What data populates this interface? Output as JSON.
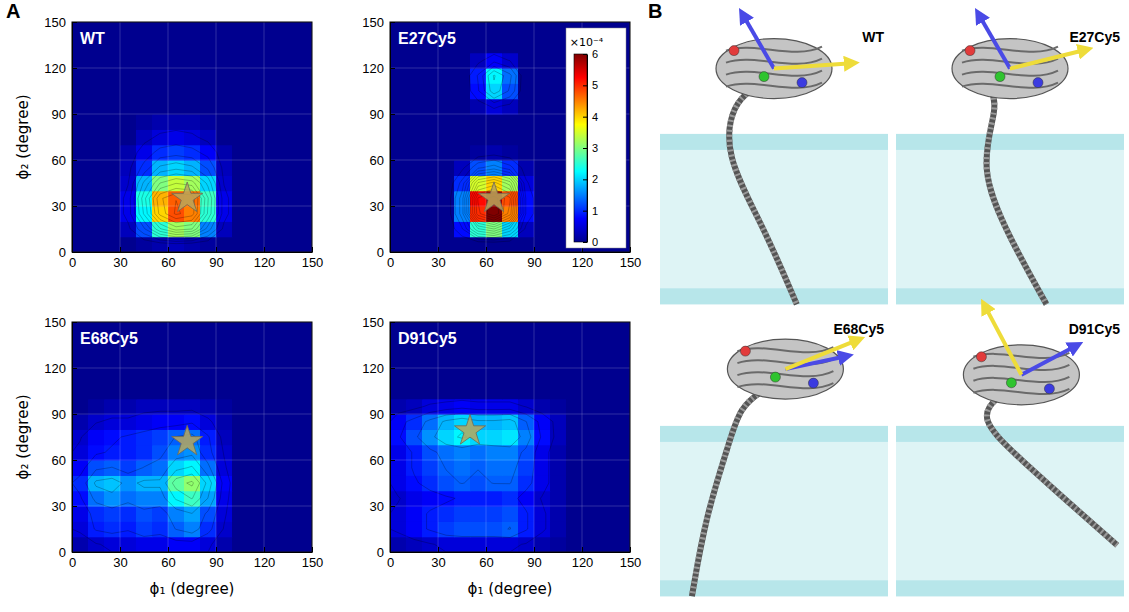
{
  "panel_labels": {
    "a": "A",
    "b": "B"
  },
  "colorbar": {
    "range": [
      0,
      6
    ],
    "ticks": [
      0,
      1,
      2,
      3,
      4,
      5,
      6
    ],
    "label": "×10⁻⁴"
  },
  "chart_data": [
    {
      "type": "heatmap",
      "title": "WT",
      "y_label": "ϕ₂ (degree)",
      "xlim": [
        0,
        150
      ],
      "ylim": [
        0,
        150
      ],
      "xticks": [
        0,
        30,
        60,
        90,
        120,
        150
      ],
      "yticks": [
        0,
        30,
        60,
        90,
        120,
        150
      ],
      "grid": true,
      "x": [
        5,
        15,
        25,
        35,
        45,
        55,
        65,
        75,
        85,
        95,
        105,
        115,
        125,
        135,
        145
      ],
      "y": [
        5,
        15,
        25,
        35,
        45,
        55,
        65,
        75,
        85,
        95,
        105,
        115,
        125,
        135,
        145
      ],
      "density": [
        [
          0,
          0,
          0,
          0,
          0.1,
          0.2,
          0.3,
          0.2,
          0.1,
          0,
          0,
          0,
          0,
          0,
          0
        ],
        [
          0,
          0,
          0,
          0.3,
          1.2,
          2.5,
          3.2,
          3.0,
          1.5,
          0.3,
          0,
          0,
          0,
          0,
          0
        ],
        [
          0,
          0,
          0,
          0.6,
          2.2,
          4.0,
          4.8,
          4.5,
          2.5,
          0.6,
          0,
          0,
          0,
          0,
          0
        ],
        [
          0,
          0,
          0,
          0.6,
          2.4,
          4.2,
          4.7,
          4.6,
          2.6,
          0.6,
          0,
          0,
          0,
          0,
          0
        ],
        [
          0,
          0,
          0,
          0.4,
          1.8,
          3.0,
          3.4,
          3.2,
          2.0,
          0.4,
          0,
          0,
          0,
          0,
          0
        ],
        [
          0,
          0,
          0,
          0.3,
          1.0,
          1.8,
          2.0,
          1.8,
          1.2,
          0.3,
          0,
          0,
          0,
          0,
          0
        ],
        [
          0,
          0,
          0,
          0.2,
          0.6,
          1.0,
          1.1,
          1.0,
          0.7,
          0.2,
          0,
          0,
          0,
          0,
          0
        ],
        [
          0,
          0,
          0,
          0,
          0.3,
          0.5,
          0.6,
          0.5,
          0.3,
          0,
          0,
          0,
          0,
          0,
          0
        ],
        [
          0,
          0,
          0,
          0,
          0.1,
          0.2,
          0.2,
          0.2,
          0.1,
          0,
          0,
          0,
          0,
          0,
          0
        ],
        [
          0,
          0,
          0,
          0,
          0,
          0,
          0,
          0,
          0,
          0,
          0,
          0,
          0,
          0,
          0
        ],
        [
          0,
          0,
          0,
          0,
          0,
          0,
          0,
          0,
          0,
          0,
          0,
          0,
          0,
          0,
          0
        ],
        [
          0,
          0,
          0,
          0,
          0,
          0,
          0,
          0,
          0,
          0,
          0,
          0,
          0,
          0,
          0
        ],
        [
          0,
          0,
          0,
          0,
          0,
          0,
          0,
          0,
          0,
          0,
          0,
          0,
          0,
          0,
          0
        ],
        [
          0,
          0,
          0,
          0,
          0,
          0,
          0,
          0,
          0,
          0,
          0,
          0,
          0,
          0,
          0
        ],
        [
          0,
          0,
          0,
          0,
          0,
          0,
          0,
          0,
          0,
          0,
          0,
          0,
          0,
          0,
          0
        ]
      ],
      "star": {
        "x": 72,
        "y": 35
      }
    },
    {
      "type": "heatmap",
      "title": "E27Cy5",
      "xlim": [
        0,
        150
      ],
      "ylim": [
        0,
        150
      ],
      "xticks": [
        0,
        30,
        60,
        90,
        120,
        150
      ],
      "yticks": [
        0,
        30,
        60,
        90,
        120,
        150
      ],
      "grid": true,
      "x": [
        5,
        15,
        25,
        35,
        45,
        55,
        65,
        75,
        85,
        95,
        105,
        115,
        125,
        135,
        145
      ],
      "y": [
        5,
        15,
        25,
        35,
        45,
        55,
        65,
        75,
        85,
        95,
        105,
        115,
        125,
        135,
        145
      ],
      "density": [
        [
          0,
          0,
          0,
          0,
          0,
          0,
          0,
          0,
          0,
          0,
          0,
          0,
          0,
          0,
          0
        ],
        [
          0,
          0,
          0,
          0,
          0.8,
          2.5,
          3.0,
          2.0,
          0.3,
          0,
          0,
          0,
          0,
          0,
          0
        ],
        [
          0,
          0,
          0,
          0,
          1.5,
          5.0,
          6.0,
          4.5,
          0.8,
          0,
          0,
          0,
          0,
          0,
          0
        ],
        [
          0,
          0,
          0,
          0,
          1.5,
          5.2,
          5.8,
          4.8,
          0.8,
          0,
          0,
          0,
          0,
          0,
          0
        ],
        [
          0,
          0,
          0,
          0,
          1.0,
          3.5,
          4.0,
          3.2,
          0.5,
          0,
          0,
          0,
          0,
          0,
          0
        ],
        [
          0,
          0,
          0,
          0,
          0.3,
          1.2,
          1.5,
          1.0,
          0.2,
          0,
          0,
          0,
          0,
          0,
          0
        ],
        [
          0,
          0,
          0,
          0,
          0,
          0.1,
          0.2,
          0.1,
          0,
          0,
          0,
          0,
          0,
          0,
          0
        ],
        [
          0,
          0,
          0,
          0,
          0,
          0,
          0,
          0,
          0,
          0,
          0,
          0,
          0,
          0,
          0
        ],
        [
          0,
          0,
          0,
          0,
          0,
          0,
          0,
          0,
          0,
          0,
          0,
          0,
          0,
          0,
          0
        ],
        [
          0,
          0,
          0,
          0,
          0,
          0.2,
          0.5,
          0.3,
          0,
          0,
          0,
          0,
          0,
          0,
          0
        ],
        [
          0,
          0,
          0,
          0,
          0,
          0.8,
          2.0,
          1.2,
          0,
          0,
          0,
          0,
          0,
          0,
          0
        ],
        [
          0,
          0,
          0,
          0,
          0,
          0.9,
          2.2,
          1.4,
          0,
          0,
          0,
          0,
          0,
          0,
          0
        ],
        [
          0,
          0,
          0,
          0,
          0,
          0.3,
          0.7,
          0.4,
          0,
          0,
          0,
          0,
          0,
          0,
          0
        ],
        [
          0,
          0,
          0,
          0,
          0,
          0,
          0,
          0,
          0,
          0,
          0,
          0,
          0,
          0,
          0
        ],
        [
          0,
          0,
          0,
          0,
          0,
          0,
          0,
          0,
          0,
          0,
          0,
          0,
          0,
          0,
          0
        ]
      ],
      "star": {
        "x": 65,
        "y": 35
      }
    },
    {
      "type": "heatmap",
      "title": "E68Cy5",
      "x_label": "ϕ₁ (degree)",
      "y_label": "ϕ₂ (degree)",
      "xlim": [
        0,
        150
      ],
      "ylim": [
        0,
        150
      ],
      "xticks": [
        0,
        30,
        60,
        90,
        120,
        150
      ],
      "yticks": [
        0,
        30,
        60,
        90,
        120,
        150
      ],
      "grid": true,
      "x": [
        5,
        15,
        25,
        35,
        45,
        55,
        65,
        75,
        85,
        95,
        105,
        115,
        125,
        135,
        145
      ],
      "y": [
        5,
        15,
        25,
        35,
        45,
        55,
        65,
        75,
        85,
        95,
        105,
        115,
        125,
        135,
        145
      ],
      "density": [
        [
          0.2,
          0.4,
          0.5,
          0.5,
          0.6,
          0.6,
          0.7,
          0.7,
          0.5,
          0.2,
          0,
          0,
          0,
          0,
          0
        ],
        [
          0.5,
          0.9,
          1.0,
          0.9,
          1.1,
          1.0,
          1.3,
          1.5,
          1.0,
          0.4,
          0,
          0,
          0,
          0,
          0
        ],
        [
          0.6,
          1.0,
          1.1,
          1.0,
          1.2,
          1.1,
          1.5,
          1.7,
          1.2,
          0.5,
          0,
          0,
          0,
          0,
          0
        ],
        [
          0.8,
          1.4,
          1.6,
          1.4,
          1.5,
          1.5,
          2.2,
          2.6,
          1.7,
          0.6,
          0,
          0,
          0,
          0,
          0
        ],
        [
          1.0,
          1.8,
          1.9,
          1.6,
          1.8,
          1.8,
          2.8,
          3.1,
          2.0,
          0.7,
          0,
          0,
          0,
          0,
          0
        ],
        [
          0.7,
          1.2,
          1.3,
          1.1,
          1.3,
          1.4,
          2.0,
          2.2,
          1.4,
          0.5,
          0,
          0,
          0,
          0,
          0
        ],
        [
          0.5,
          0.8,
          0.9,
          0.9,
          1.0,
          1.2,
          1.5,
          1.6,
          1.0,
          0.4,
          0,
          0,
          0,
          0,
          0
        ],
        [
          0.4,
          0.7,
          0.8,
          0.9,
          1.0,
          1.1,
          1.3,
          1.4,
          0.9,
          0.3,
          0,
          0,
          0,
          0,
          0
        ],
        [
          0.2,
          0.4,
          0.5,
          0.5,
          0.6,
          0.7,
          0.7,
          0.8,
          0.5,
          0.2,
          0,
          0,
          0,
          0,
          0
        ],
        [
          0,
          0.1,
          0.2,
          0.2,
          0.3,
          0.3,
          0.3,
          0.3,
          0.2,
          0.1,
          0,
          0,
          0,
          0,
          0
        ],
        [
          0,
          0,
          0,
          0,
          0,
          0,
          0,
          0,
          0,
          0,
          0,
          0,
          0,
          0,
          0
        ],
        [
          0,
          0,
          0,
          0,
          0,
          0,
          0,
          0,
          0,
          0,
          0,
          0,
          0,
          0,
          0
        ],
        [
          0,
          0,
          0,
          0,
          0,
          0,
          0,
          0,
          0,
          0,
          0,
          0,
          0,
          0,
          0
        ],
        [
          0,
          0,
          0,
          0,
          0,
          0,
          0,
          0,
          0,
          0,
          0,
          0,
          0,
          0,
          0
        ],
        [
          0,
          0,
          0,
          0,
          0,
          0,
          0,
          0,
          0,
          0,
          0,
          0,
          0,
          0,
          0
        ]
      ],
      "star": {
        "x": 72,
        "y": 72
      }
    },
    {
      "type": "heatmap",
      "title": "D91Cy5",
      "x_label": "ϕ₁ (degree)",
      "xlim": [
        0,
        150
      ],
      "ylim": [
        0,
        150
      ],
      "xticks": [
        0,
        30,
        60,
        90,
        120,
        150
      ],
      "yticks": [
        0,
        30,
        60,
        90,
        120,
        150
      ],
      "grid": true,
      "x": [
        5,
        15,
        25,
        35,
        45,
        55,
        65,
        75,
        85,
        95,
        105,
        115,
        125,
        135,
        145
      ],
      "y": [
        5,
        15,
        25,
        35,
        45,
        55,
        65,
        75,
        85,
        95,
        105,
        115,
        125,
        135,
        145
      ],
      "density": [
        [
          0.2,
          0.3,
          0.4,
          0.5,
          0.5,
          0.5,
          0.5,
          0.5,
          0.4,
          0.2,
          0.1,
          0,
          0,
          0,
          0
        ],
        [
          0.5,
          0.7,
          0.9,
          1.1,
          1.2,
          1.2,
          1.2,
          1.3,
          0.9,
          0.5,
          0.2,
          0,
          0,
          0,
          0
        ],
        [
          0.5,
          0.7,
          0.9,
          1.0,
          1.1,
          1.1,
          1.1,
          1.2,
          0.9,
          0.5,
          0.2,
          0,
          0,
          0,
          0
        ],
        [
          0.4,
          0.6,
          0.7,
          0.8,
          0.9,
          0.9,
          0.9,
          1.0,
          0.7,
          0.4,
          0.2,
          0,
          0,
          0,
          0
        ],
        [
          0.6,
          0.8,
          1.0,
          1.2,
          1.3,
          1.2,
          1.3,
          1.3,
          1.0,
          0.6,
          0.2,
          0,
          0,
          0,
          0
        ],
        [
          0.6,
          0.9,
          1.1,
          1.3,
          1.4,
          1.3,
          1.4,
          1.4,
          1.1,
          0.6,
          0.2,
          0,
          0,
          0,
          0
        ],
        [
          0.6,
          0.9,
          1.2,
          1.4,
          1.5,
          1.4,
          1.5,
          1.5,
          1.2,
          0.6,
          0.2,
          0,
          0,
          0,
          0
        ],
        [
          0.8,
          1.2,
          1.6,
          2.0,
          2.2,
          2.0,
          2.0,
          2.1,
          1.5,
          0.8,
          0.3,
          0,
          0,
          0,
          0
        ],
        [
          0.7,
          1.0,
          1.4,
          1.8,
          2.0,
          1.8,
          1.8,
          1.9,
          1.3,
          0.7,
          0.3,
          0,
          0,
          0,
          0
        ],
        [
          0.2,
          0.3,
          0.5,
          0.6,
          0.7,
          0.6,
          0.6,
          0.6,
          0.4,
          0.2,
          0.1,
          0,
          0,
          0,
          0
        ],
        [
          0,
          0,
          0,
          0,
          0,
          0,
          0,
          0,
          0,
          0,
          0,
          0,
          0,
          0,
          0
        ],
        [
          0,
          0,
          0,
          0,
          0,
          0,
          0,
          0,
          0,
          0,
          0,
          0,
          0,
          0,
          0
        ],
        [
          0,
          0,
          0,
          0,
          0,
          0,
          0,
          0,
          0,
          0,
          0,
          0,
          0,
          0,
          0
        ],
        [
          0,
          0,
          0,
          0,
          0,
          0,
          0,
          0,
          0,
          0,
          0,
          0,
          0,
          0,
          0
        ],
        [
          0,
          0,
          0,
          0,
          0,
          0,
          0,
          0,
          0,
          0,
          0,
          0,
          0,
          0,
          0
        ]
      ],
      "star": {
        "x": 50,
        "y": 79
      }
    }
  ],
  "structures": {
    "labels": [
      "WT",
      "E27Cy5",
      "E68Cy5",
      "D91Cy5"
    ]
  }
}
